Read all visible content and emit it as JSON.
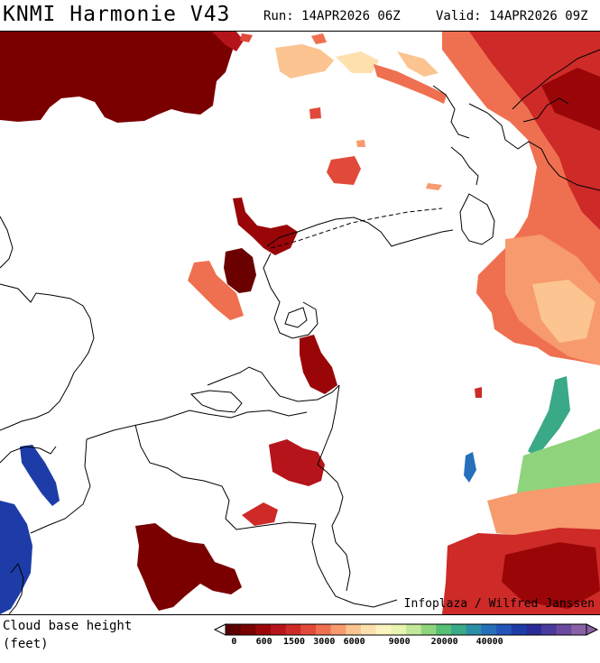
{
  "header": {
    "title": "KNMI Harmonie V43",
    "run_text": "Run: 14APR2026 06Z",
    "valid_text": "Valid: 14APR2026 09Z"
  },
  "map": {
    "credit": "Infoplaza / Wilfred Janssen"
  },
  "legend": {
    "label_line1": "Cloud base height",
    "label_line2": "(feet)",
    "tick_labels": [
      "0",
      "600",
      "1500",
      "3000",
      "6000",
      "9000",
      "20000",
      "40000"
    ],
    "colors": [
      "#5a0000",
      "#7a0000",
      "#9a0608",
      "#b5141a",
      "#cd2a28",
      "#e14a3a",
      "#ef7050",
      "#f79a6e",
      "#fbc490",
      "#fde0ae",
      "#fdf5c0",
      "#e8f5b0",
      "#c4e89a",
      "#8fd47c",
      "#56bf74",
      "#3aa988",
      "#2c8fa8",
      "#2670bb",
      "#2355b8",
      "#1e3ca8",
      "#2a2a98",
      "#4a3a9c",
      "#6a4aa0",
      "#8a62a8"
    ]
  }
}
